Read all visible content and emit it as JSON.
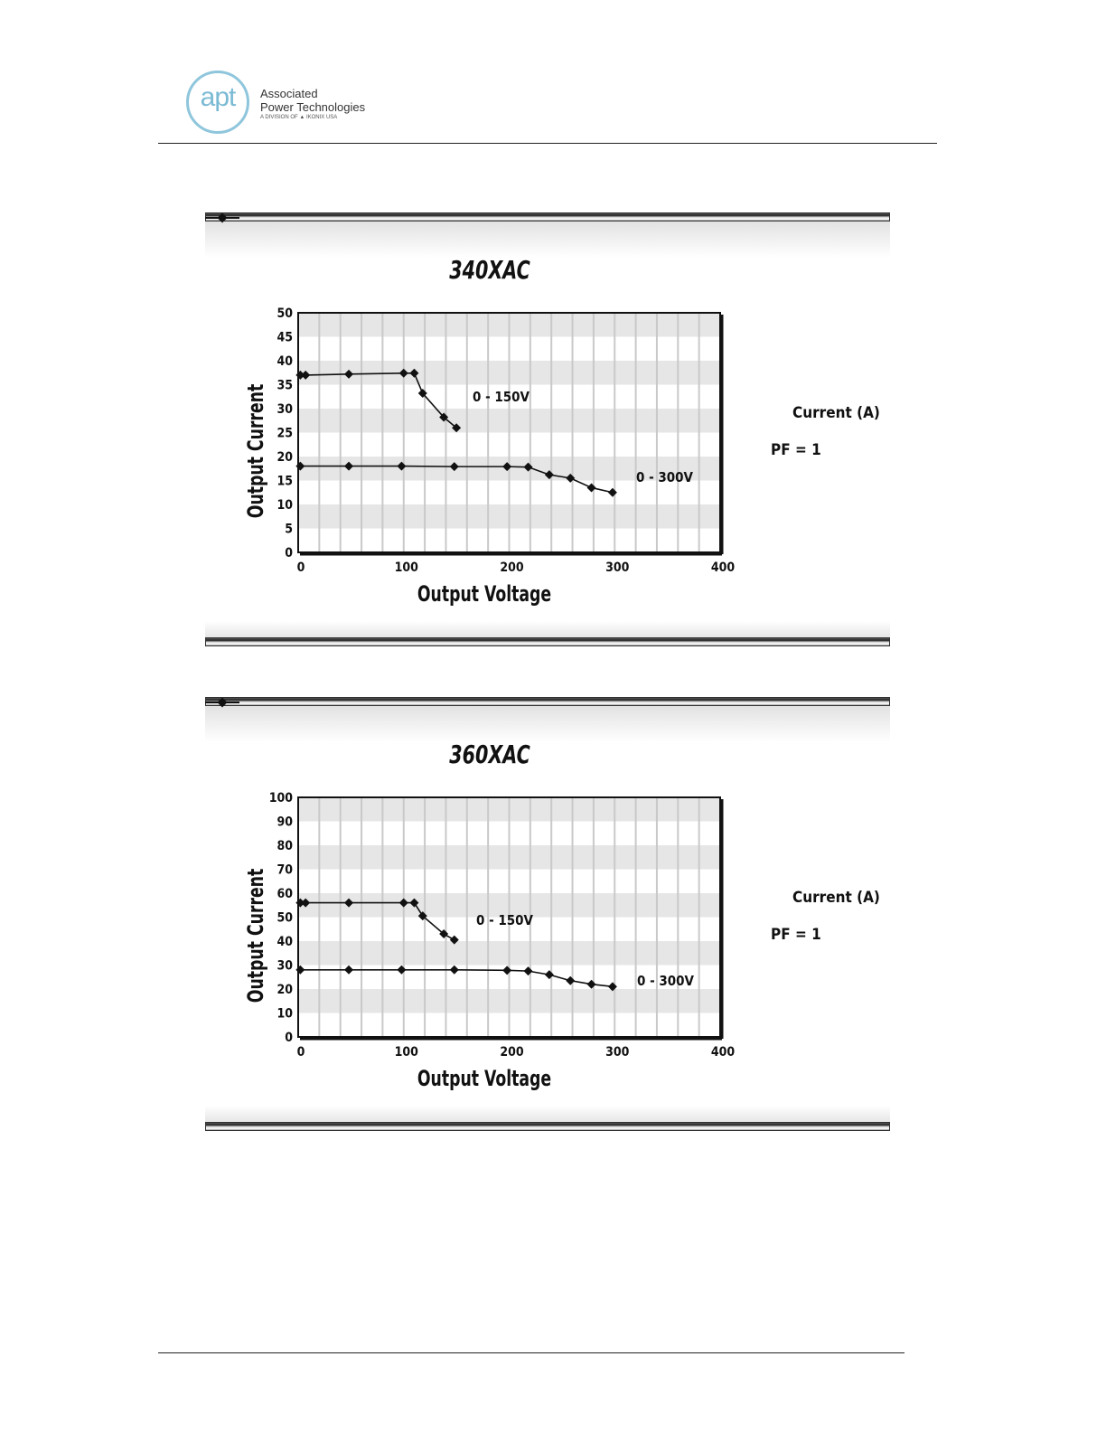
{
  "header": {
    "logo_mark": "apt",
    "company_line1": "Associated",
    "company_line2": "Power Technologies",
    "company_sub": "A DIVISION OF ▲ IKONIX USA"
  },
  "colors": {
    "grid_band": "#e6e6e6",
    "grid_line": "#c9c9c9",
    "series_line": "#111111",
    "logo_accent": "#7bbad4"
  },
  "chart_data": [
    {
      "type": "line",
      "title": "340XAC",
      "xlabel": "Output Voltage",
      "ylabel": "Output Current",
      "xlim": [
        0,
        400
      ],
      "ylim": [
        0,
        50
      ],
      "x_ticks": [
        0,
        100,
        200,
        300,
        400
      ],
      "y_ticks": [
        0,
        5,
        10,
        15,
        20,
        25,
        30,
        35,
        40,
        45,
        50
      ],
      "grid": true,
      "legend": {
        "position": "right",
        "series_label": "Current (A)",
        "note": "PF = 1"
      },
      "series": [
        {
          "label": "0 - 150V",
          "points": [
            [
              2,
              37
            ],
            [
              7,
              37
            ],
            [
              48,
              37.2
            ],
            [
              100,
              37.4
            ],
            [
              110,
              37.4
            ],
            [
              118,
              33.2
            ],
            [
              138,
              28.2
            ],
            [
              150,
              26
            ]
          ]
        },
        {
          "label": "0 - 300V",
          "points": [
            [
              2,
              18
            ],
            [
              48,
              18
            ],
            [
              98,
              18
            ],
            [
              148,
              17.9
            ],
            [
              198,
              17.9
            ],
            [
              218,
              17.8
            ],
            [
              238,
              16.2
            ],
            [
              258,
              15.5
            ],
            [
              278,
              13.5
            ],
            [
              298,
              12.5
            ]
          ]
        }
      ]
    },
    {
      "type": "line",
      "title": "360XAC",
      "xlabel": "Output Voltage",
      "ylabel": "Output Current",
      "xlim": [
        0,
        400
      ],
      "ylim": [
        0,
        100
      ],
      "x_ticks": [
        0,
        100,
        200,
        300,
        400
      ],
      "y_ticks": [
        0,
        10,
        20,
        30,
        40,
        50,
        60,
        70,
        80,
        90,
        100
      ],
      "grid": true,
      "legend": {
        "position": "right",
        "series_label": "Current (A)",
        "note": "PF = 1"
      },
      "series": [
        {
          "label": "0 - 150V",
          "points": [
            [
              2,
              56
            ],
            [
              7,
              56
            ],
            [
              48,
              56
            ],
            [
              100,
              56
            ],
            [
              110,
              56
            ],
            [
              118,
              50.5
            ],
            [
              138,
              43
            ],
            [
              148,
              40.5
            ]
          ]
        },
        {
          "label": "0 - 300V",
          "points": [
            [
              2,
              28
            ],
            [
              48,
              28
            ],
            [
              98,
              28
            ],
            [
              148,
              28
            ],
            [
              198,
              27.8
            ],
            [
              218,
              27.5
            ],
            [
              238,
              26
            ],
            [
              258,
              23.5
            ],
            [
              278,
              22
            ],
            [
              298,
              21
            ]
          ]
        }
      ]
    }
  ]
}
